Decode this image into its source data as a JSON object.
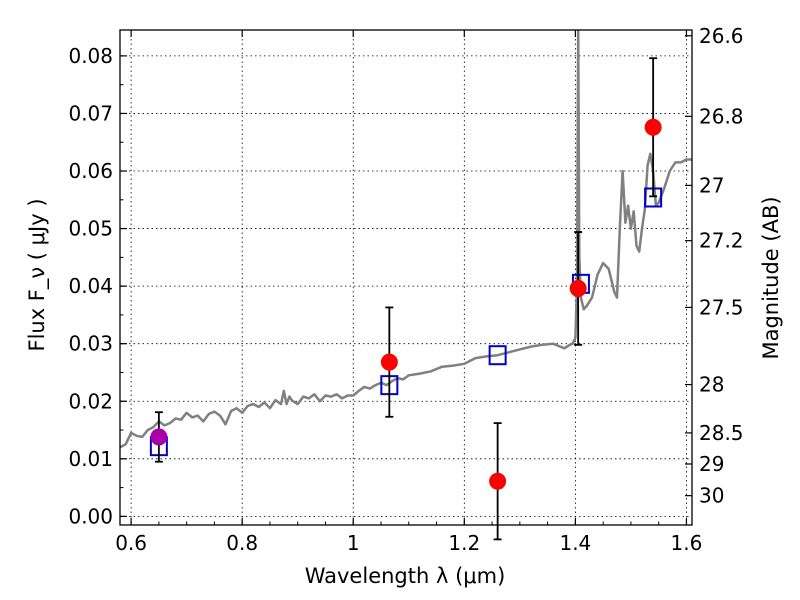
{
  "chart_data": {
    "type": "scatter",
    "xlabel": "Wavelength  λ (μm)",
    "ylabel_left": "Flux  F_ν  ( μJy )",
    "ylabel_right": "Magnitude (AB)",
    "xlim": [
      0.58,
      1.61
    ],
    "ylim": [
      -0.0015,
      0.0845
    ],
    "grid": true,
    "x_ticks": [
      0.6,
      0.8,
      1.0,
      1.2,
      1.4,
      1.6
    ],
    "x_tick_labels": [
      "0.6",
      "0.8",
      "1",
      "1.2",
      "1.4",
      "1.6"
    ],
    "y_ticks": [
      0.0,
      0.01,
      0.02,
      0.03,
      0.04,
      0.05,
      0.06,
      0.07,
      0.08
    ],
    "y_tick_labels": [
      "0.00",
      "0.01",
      "0.02",
      "0.03",
      "0.04",
      "0.05",
      "0.06",
      "0.07",
      "0.08"
    ],
    "right_ticks": [
      {
        "label": "26.6",
        "flux": 0.0835
      },
      {
        "label": "26.8",
        "flux": 0.0695
      },
      {
        "label": "27",
        "flux": 0.0575
      },
      {
        "label": "27.2",
        "flux": 0.0479
      },
      {
        "label": "27.5",
        "flux": 0.0363
      },
      {
        "label": "28",
        "flux": 0.0229
      },
      {
        "label": "28.5",
        "flux": 0.0145
      },
      {
        "label": "29",
        "flux": 0.0091
      },
      {
        "label": "30",
        "flux": 0.0036
      }
    ],
    "series": [
      {
        "kind": "model",
        "color": "#808080",
        "x": [
          0.58,
          0.59,
          0.6,
          0.61,
          0.62,
          0.63,
          0.64,
          0.65,
          0.66,
          0.67,
          0.68,
          0.69,
          0.7,
          0.71,
          0.72,
          0.73,
          0.74,
          0.75,
          0.76,
          0.77,
          0.78,
          0.79,
          0.8,
          0.81,
          0.82,
          0.83,
          0.84,
          0.85,
          0.86,
          0.87,
          0.875,
          0.88,
          0.885,
          0.89,
          0.9,
          0.91,
          0.92,
          0.93,
          0.94,
          0.95,
          0.96,
          0.97,
          0.98,
          0.99,
          1.0,
          1.01,
          1.02,
          1.03,
          1.04,
          1.05,
          1.06,
          1.07,
          1.08,
          1.09,
          1.1,
          1.12,
          1.14,
          1.16,
          1.18,
          1.2,
          1.22,
          1.24,
          1.26,
          1.28,
          1.3,
          1.32,
          1.34,
          1.36,
          1.37,
          1.38,
          1.39,
          1.395,
          1.4,
          1.403,
          1.405,
          1.407,
          1.41,
          1.415,
          1.42,
          1.43,
          1.44,
          1.45,
          1.46,
          1.47,
          1.475,
          1.48,
          1.485,
          1.49,
          1.495,
          1.5,
          1.505,
          1.51,
          1.515,
          1.52,
          1.525,
          1.53,
          1.535,
          1.54,
          1.545,
          1.55,
          1.56,
          1.57,
          1.58,
          1.59,
          1.6,
          1.61
        ],
        "y": [
          0.012,
          0.0125,
          0.0145,
          0.014,
          0.0138,
          0.015,
          0.0155,
          0.0165,
          0.0158,
          0.0162,
          0.017,
          0.0168,
          0.018,
          0.0172,
          0.0175,
          0.0165,
          0.0178,
          0.0182,
          0.0175,
          0.016,
          0.0183,
          0.0188,
          0.018,
          0.0192,
          0.0195,
          0.019,
          0.0198,
          0.0188,
          0.0202,
          0.0195,
          0.0218,
          0.0195,
          0.0208,
          0.0201,
          0.0195,
          0.0208,
          0.0205,
          0.0212,
          0.02,
          0.021,
          0.0208,
          0.0212,
          0.0205,
          0.021,
          0.021,
          0.0218,
          0.0225,
          0.0222,
          0.0228,
          0.0232,
          0.0228,
          0.0235,
          0.024,
          0.0238,
          0.0245,
          0.0248,
          0.0252,
          0.026,
          0.0262,
          0.0265,
          0.0275,
          0.0278,
          0.028,
          0.0285,
          0.029,
          0.0295,
          0.0298,
          0.03,
          0.0296,
          0.0292,
          0.0298,
          0.03,
          0.031,
          0.04,
          0.085,
          0.045,
          0.038,
          0.036,
          0.0365,
          0.038,
          0.042,
          0.044,
          0.043,
          0.039,
          0.038,
          0.05,
          0.06,
          0.051,
          0.054,
          0.05,
          0.053,
          0.047,
          0.046,
          0.05,
          0.0533,
          0.061,
          0.063,
          0.06,
          0.054,
          0.0545,
          0.057,
          0.06,
          0.0615,
          0.0615,
          0.062,
          0.062
        ]
      },
      {
        "kind": "model_bandpass",
        "color": "#0000cc",
        "x": [
          0.65,
          1.065,
          1.26,
          1.41,
          1.54
        ],
        "y": [
          0.0122,
          0.0228,
          0.028,
          0.0404,
          0.0554
        ]
      },
      {
        "kind": "observed",
        "color": "#ff0000",
        "x": [
          0.65,
          1.065,
          1.26,
          1.405,
          1.54
        ],
        "y": [
          0.0138,
          0.0268,
          0.0061,
          0.0396,
          0.0676
        ],
        "err": [
          0.0043,
          0.0095,
          0.0101,
          0.0098,
          0.012
        ],
        "point_colors": [
          "#aa00aa",
          "#ff0000",
          "#ff0000",
          "#ff0000",
          "#ff0000"
        ]
      }
    ]
  }
}
